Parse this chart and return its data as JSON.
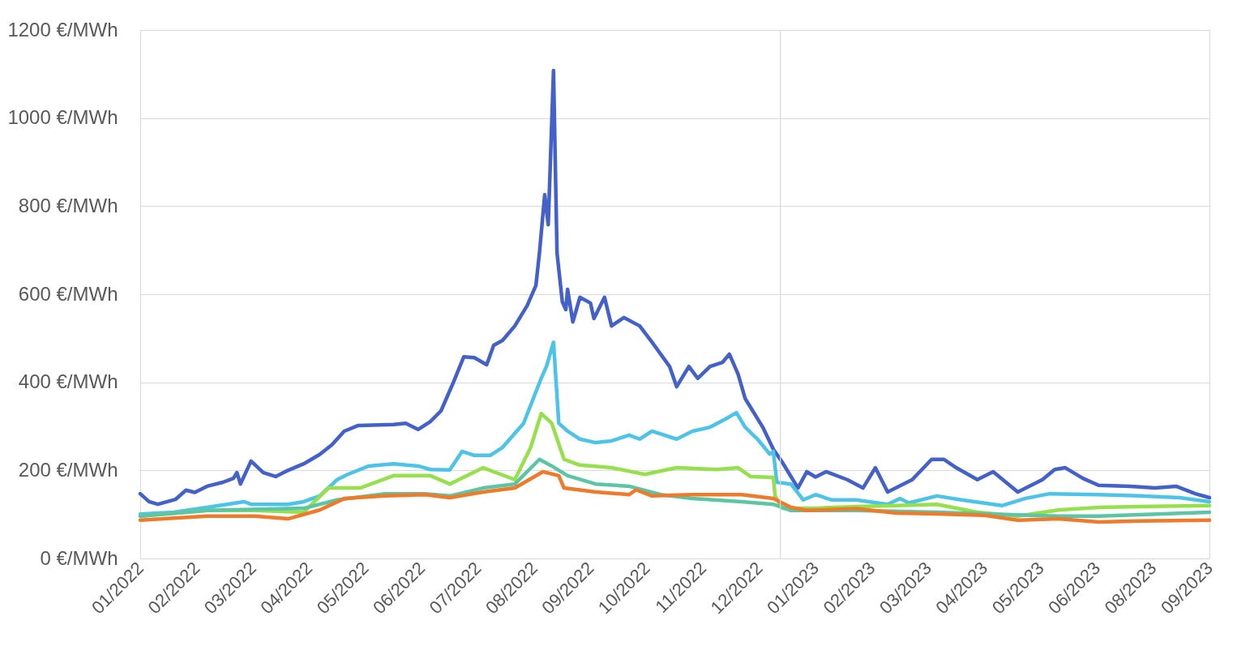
{
  "chart_data": {
    "type": "line",
    "ylim": [
      0,
      1200
    ],
    "yticks": [
      {
        "value": 0,
        "label": "0 €/MWh"
      },
      {
        "value": 200,
        "label": "200 €/MWh"
      },
      {
        "value": 400,
        "label": "400 €/MWh"
      },
      {
        "value": 600,
        "label": "600 €/MWh"
      },
      {
        "value": 800,
        "label": "800 €/MWh"
      },
      {
        "value": 1000,
        "label": "1000 €/MWh"
      },
      {
        "value": 1200,
        "label": "1200 €/MWh"
      }
    ],
    "xlim": [
      "2022-01-02",
      "2023-09-02"
    ],
    "xticks": [
      {
        "value": "2022-01-02",
        "label": "01/2022"
      },
      {
        "value": "2022-02-03",
        "label": "02/2022"
      },
      {
        "value": "2022-03-07",
        "label": "03/2022"
      },
      {
        "value": "2022-04-08",
        "label": "04/2022"
      },
      {
        "value": "2022-05-10",
        "label": "05/2022"
      },
      {
        "value": "2022-06-11",
        "label": "06/2022"
      },
      {
        "value": "2022-07-13",
        "label": "07/2022"
      },
      {
        "value": "2022-08-14",
        "label": "08/2022"
      },
      {
        "value": "2022-09-15",
        "label": "09/2022"
      },
      {
        "value": "2022-10-17",
        "label": "10/2022"
      },
      {
        "value": "2022-11-18",
        "label": "11/2022"
      },
      {
        "value": "2022-12-20",
        "label": "12/2022"
      },
      {
        "value": "2023-01-21",
        "label": "01/2023"
      },
      {
        "value": "2023-02-22",
        "label": "02/2023"
      },
      {
        "value": "2023-03-26",
        "label": "03/2023"
      },
      {
        "value": "2023-04-27",
        "label": "04/2023"
      },
      {
        "value": "2023-05-29",
        "label": "05/2023"
      },
      {
        "value": "2023-06-30",
        "label": "06/2023"
      },
      {
        "value": "2023-08-01",
        "label": "08/2023"
      },
      {
        "value": "2023-09-02",
        "label": "09/2023"
      }
    ],
    "grid": "y",
    "legend": false,
    "line_style": "solid",
    "marker": "none",
    "ref_lines": [
      {
        "axis": "x",
        "value": "2023-01-01",
        "color": "#d9d9d9"
      }
    ],
    "series": [
      {
        "color": "#4361c9",
        "x": [
          "2022-01-02",
          "2022-01-07",
          "2022-01-12",
          "2022-01-22",
          "2022-01-28",
          "2022-02-02",
          "2022-02-09",
          "2022-02-18",
          "2022-02-24",
          "2022-02-26",
          "2022-02-28",
          "2022-03-06",
          "2022-03-13",
          "2022-03-20",
          "2022-03-27",
          "2022-04-05",
          "2022-04-14",
          "2022-04-21",
          "2022-04-28",
          "2022-05-06",
          "2022-05-26",
          "2022-06-02",
          "2022-06-09",
          "2022-06-16",
          "2022-06-22",
          "2022-06-29",
          "2022-07-05",
          "2022-07-11",
          "2022-07-18",
          "2022-07-22",
          "2022-07-27",
          "2022-08-03",
          "2022-08-10",
          "2022-08-15",
          "2022-08-17",
          "2022-08-20",
          "2022-08-22",
          "2022-08-25",
          "2022-08-27",
          "2022-08-30",
          "2022-09-01",
          "2022-09-02",
          "2022-09-05",
          "2022-09-09",
          "2022-09-15",
          "2022-09-17",
          "2022-09-23",
          "2022-09-27",
          "2022-10-04",
          "2022-10-13",
          "2022-10-20",
          "2022-10-30",
          "2022-11-03",
          "2022-11-10",
          "2022-11-15",
          "2022-11-22",
          "2022-11-29",
          "2022-12-03",
          "2022-12-08",
          "2022-12-12",
          "2022-12-22",
          "2022-12-28",
          "2023-01-02",
          "2023-01-11",
          "2023-01-16",
          "2023-01-21",
          "2023-01-27",
          "2023-02-08",
          "2023-02-17",
          "2023-02-24",
          "2023-03-03",
          "2023-03-17",
          "2023-03-28",
          "2023-04-04",
          "2023-04-11",
          "2023-04-23",
          "2023-05-02",
          "2023-05-16",
          "2023-05-25",
          "2023-05-30",
          "2023-06-06",
          "2023-06-12",
          "2023-06-22",
          "2023-07-01",
          "2023-07-19",
          "2023-08-02",
          "2023-08-14",
          "2023-08-25",
          "2023-09-02"
        ],
        "values": [
          147,
          129,
          123,
          134,
          155,
          150,
          164,
          173,
          182,
          195,
          169,
          221,
          195,
          186,
          200,
          215,
          236,
          258,
          289,
          302,
          304,
          307,
          293,
          311,
          335,
          399,
          458,
          456,
          440,
          484,
          495,
          528,
          574,
          620,
          694,
          826,
          758,
          1108,
          694,
          583,
          565,
          611,
          537,
          593,
          580,
          545,
          593,
          528,
          547,
          528,
          491,
          436,
          390,
          436,
          409,
          436,
          445,
          464,
          418,
          363,
          298,
          248,
          219,
          160,
          197,
          185,
          197,
          179,
          160,
          206,
          151,
          179,
          225,
          225,
          206,
          179,
          197,
          151,
          169,
          179,
          202,
          206,
          182,
          166,
          164,
          160,
          164,
          147,
          138
        ]
      },
      {
        "color": "#4dc3e8",
        "x": [
          "2022-01-02",
          "2022-01-21",
          "2022-02-09",
          "2022-03-02",
          "2022-03-06",
          "2022-03-27",
          "2022-04-05",
          "2022-04-14",
          "2022-04-24",
          "2022-04-30",
          "2022-05-12",
          "2022-05-26",
          "2022-06-09",
          "2022-06-16",
          "2022-06-27",
          "2022-07-04",
          "2022-07-11",
          "2022-07-20",
          "2022-07-27",
          "2022-08-08",
          "2022-08-18",
          "2022-08-21",
          "2022-08-25",
          "2022-08-28",
          "2022-09-02",
          "2022-09-09",
          "2022-09-18",
          "2022-09-27",
          "2022-10-07",
          "2022-10-13",
          "2022-10-20",
          "2022-11-03",
          "2022-11-12",
          "2022-11-22",
          "2022-12-01",
          "2022-12-07",
          "2022-12-12",
          "2022-12-19",
          "2022-12-26",
          "2022-12-28",
          "2022-12-30",
          "2023-01-07",
          "2023-01-14",
          "2023-01-21",
          "2023-01-30",
          "2023-02-13",
          "2023-03-03",
          "2023-03-10",
          "2023-03-15",
          "2023-03-31",
          "2023-04-14",
          "2023-05-07",
          "2023-05-20",
          "2023-06-03",
          "2023-07-01",
          "2023-07-24",
          "2023-08-16",
          "2023-09-02"
        ],
        "values": [
          101,
          105,
          116,
          129,
          123,
          123,
          129,
          142,
          179,
          191,
          210,
          215,
          210,
          202,
          201,
          243,
          234,
          234,
          252,
          307,
          409,
          436,
          491,
          307,
          289,
          271,
          263,
          267,
          280,
          271,
          289,
          271,
          289,
          298,
          317,
          331,
          298,
          271,
          237,
          243,
          173,
          169,
          133,
          145,
          133,
          133,
          123,
          136,
          126,
          142,
          133,
          120,
          136,
          147,
          145,
          142,
          138,
          129
        ]
      },
      {
        "color": "#95e04c",
        "x": [
          "2022-01-02",
          "2022-02-09",
          "2022-03-08",
          "2022-04-05",
          "2022-04-19",
          "2022-05-07",
          "2022-05-26",
          "2022-06-16",
          "2022-06-27",
          "2022-07-16",
          "2022-08-03",
          "2022-08-12",
          "2022-08-18",
          "2022-08-24",
          "2022-08-31",
          "2022-09-09",
          "2022-09-27",
          "2022-10-16",
          "2022-11-03",
          "2022-11-26",
          "2022-12-08",
          "2022-12-15",
          "2022-12-28",
          "2022-12-29",
          "2023-01-02",
          "2023-01-21",
          "2023-02-13",
          "2023-03-08",
          "2023-03-31",
          "2023-04-23",
          "2023-05-16",
          "2023-06-08",
          "2023-07-01",
          "2023-07-24",
          "2023-09-02"
        ],
        "values": [
          96,
          109,
          109,
          105,
          160,
          160,
          188,
          188,
          169,
          206,
          179,
          252,
          329,
          307,
          225,
          212,
          206,
          191,
          206,
          202,
          206,
          186,
          184,
          142,
          114,
          114,
          118,
          120,
          123,
          105,
          96,
          110,
          116,
          118,
          120
        ]
      },
      {
        "color": "#5cc5a5",
        "x": [
          "2022-01-02",
          "2022-02-09",
          "2022-04-05",
          "2022-04-24",
          "2022-05-21",
          "2022-06-13",
          "2022-06-27",
          "2022-07-16",
          "2022-08-03",
          "2022-08-17",
          "2022-08-24",
          "2022-09-02",
          "2022-09-18",
          "2022-10-07",
          "2022-10-25",
          "2022-11-12",
          "2022-12-10",
          "2022-12-28",
          "2023-01-07",
          "2023-02-13",
          "2023-03-31",
          "2023-05-16",
          "2023-06-08",
          "2023-07-01",
          "2023-09-02"
        ],
        "values": [
          96,
          109,
          114,
          133,
          147,
          147,
          142,
          160,
          169,
          225,
          210,
          188,
          169,
          164,
          145,
          136,
          129,
          123,
          109,
          109,
          105,
          99,
          96,
          96,
          105
        ]
      },
      {
        "color": "#ee7a2b",
        "x": [
          "2022-01-02",
          "2022-02-09",
          "2022-03-08",
          "2022-03-27",
          "2022-04-14",
          "2022-04-28",
          "2022-05-21",
          "2022-06-13",
          "2022-06-27",
          "2022-07-16",
          "2022-08-03",
          "2022-08-19",
          "2022-08-28",
          "2022-08-31",
          "2022-09-18",
          "2022-10-07",
          "2022-10-11",
          "2022-10-20",
          "2022-11-12",
          "2022-12-10",
          "2022-12-28",
          "2023-01-07",
          "2023-01-16",
          "2023-02-13",
          "2023-03-08",
          "2023-03-31",
          "2023-04-27",
          "2023-05-16",
          "2023-06-08",
          "2023-07-01",
          "2023-07-24",
          "2023-09-02"
        ],
        "values": [
          87,
          96,
          96,
          90,
          110,
          136,
          142,
          145,
          138,
          151,
          160,
          197,
          188,
          160,
          151,
          145,
          156,
          142,
          145,
          145,
          136,
          116,
          109,
          113,
          103,
          101,
          98,
          87,
          90,
          83,
          85,
          87
        ]
      }
    ]
  }
}
